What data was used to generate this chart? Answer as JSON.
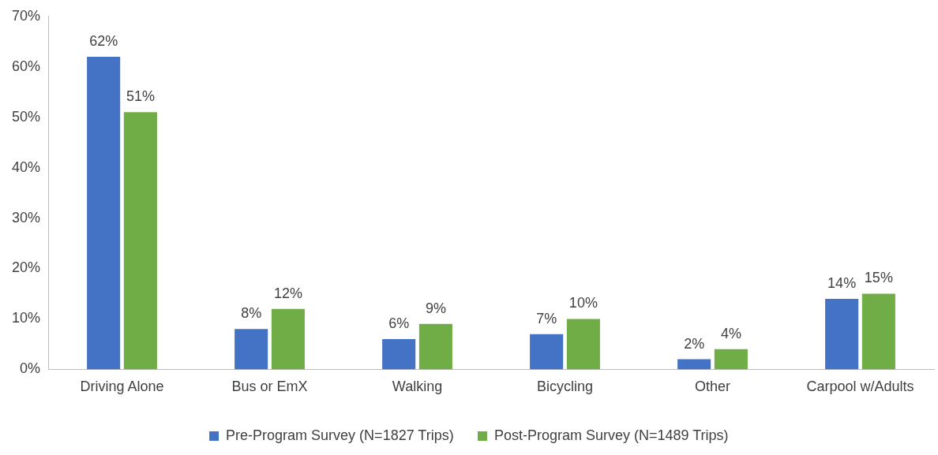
{
  "chart_data": {
    "type": "bar",
    "categories": [
      "Driving Alone",
      "Bus or EmX",
      "Walking",
      "Bicycling",
      "Other",
      "Carpool w/Adults"
    ],
    "series": [
      {
        "name": "Pre-Program Survey (N=1827 Trips)",
        "color": "#4472c4",
        "values": [
          62,
          8,
          6,
          7,
          2,
          14
        ],
        "value_labels": [
          "62%",
          "8%",
          "6%",
          "7%",
          "2%",
          "14%"
        ]
      },
      {
        "name": "Post-Program Survey (N=1489 Trips)",
        "color": "#70ad47",
        "values": [
          51,
          12,
          9,
          10,
          4,
          15
        ],
        "value_labels": [
          "51%",
          "12%",
          "9%",
          "10%",
          "4%",
          "15%"
        ]
      }
    ],
    "ylim": [
      0,
      70
    ],
    "yticks": [
      {
        "value": 0,
        "label": "0%"
      },
      {
        "value": 10,
        "label": "10%"
      },
      {
        "value": 20,
        "label": "20%"
      },
      {
        "value": 30,
        "label": "30%"
      },
      {
        "value": 40,
        "label": "40%"
      },
      {
        "value": 50,
        "label": "50%"
      },
      {
        "value": 60,
        "label": "60%"
      },
      {
        "value": 70,
        "label": "70%"
      }
    ],
    "grid": false,
    "legend": "bottom"
  }
}
